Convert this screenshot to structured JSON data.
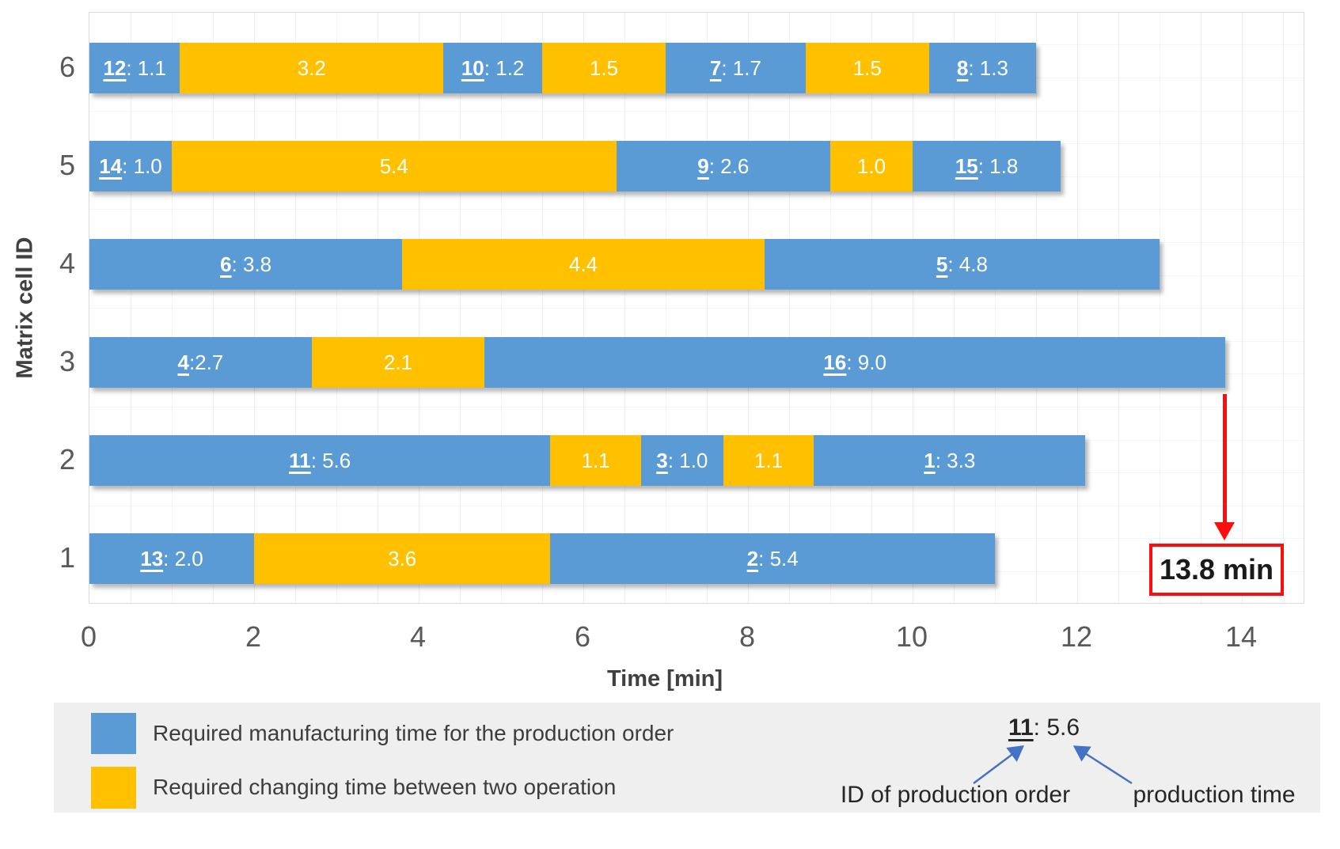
{
  "chart_data": {
    "type": "stacked-bar-horizontal",
    "xlabel": "Time [min]",
    "ylabel": "Matrix cell ID",
    "x_tick_values": [
      0,
      2,
      4,
      6,
      8,
      10,
      12,
      14
    ],
    "xlim": [
      0,
      14.77
    ],
    "y_categories": [
      "6",
      "5",
      "4",
      "3",
      "2",
      "1"
    ],
    "rows": [
      {
        "cell": "6",
        "segments": [
          {
            "kind": "manufacturing",
            "id": "12",
            "sep": ": ",
            "value": 1.1
          },
          {
            "kind": "changing",
            "value": 3.2
          },
          {
            "kind": "manufacturing",
            "id": "10",
            "sep": ": ",
            "value": 1.2
          },
          {
            "kind": "changing",
            "value": 1.5
          },
          {
            "kind": "manufacturing",
            "id": "7",
            "sep": ": ",
            "value": 1.7
          },
          {
            "kind": "changing",
            "value": 1.5
          },
          {
            "kind": "manufacturing",
            "id": "8",
            "sep": ": ",
            "value": 1.3
          }
        ]
      },
      {
        "cell": "5",
        "segments": [
          {
            "kind": "manufacturing",
            "id": "14",
            "sep": ": ",
            "value": 1.0
          },
          {
            "kind": "changing",
            "value": 5.4
          },
          {
            "kind": "manufacturing",
            "id": "9",
            "sep": ": ",
            "value": 2.6
          },
          {
            "kind": "changing",
            "value": 1.0
          },
          {
            "kind": "manufacturing",
            "id": "15",
            "sep": ": ",
            "value": 1.8
          }
        ]
      },
      {
        "cell": "4",
        "segments": [
          {
            "kind": "manufacturing",
            "id": "6",
            "sep": ": ",
            "value": 3.8
          },
          {
            "kind": "changing",
            "value": 4.4
          },
          {
            "kind": "manufacturing",
            "id": "5",
            "sep": ": ",
            "value": 4.8
          }
        ]
      },
      {
        "cell": "3",
        "segments": [
          {
            "kind": "manufacturing",
            "id": "4",
            "sep": ":",
            "value": 2.7
          },
          {
            "kind": "changing",
            "value": 2.1
          },
          {
            "kind": "manufacturing",
            "id": "16",
            "sep": ": ",
            "value": 9.0
          }
        ]
      },
      {
        "cell": "2",
        "segments": [
          {
            "kind": "manufacturing",
            "id": "11",
            "sep": ": ",
            "value": 5.6
          },
          {
            "kind": "changing",
            "value": 1.1
          },
          {
            "kind": "manufacturing",
            "id": "3",
            "sep": ": ",
            "value": 1.0
          },
          {
            "kind": "changing",
            "value": 1.1
          },
          {
            "kind": "manufacturing",
            "id": "1",
            "sep": ": ",
            "value": 3.3
          }
        ]
      },
      {
        "cell": "1",
        "segments": [
          {
            "kind": "manufacturing",
            "id": "13",
            "sep": ": ",
            "value": 2.0
          },
          {
            "kind": "changing",
            "value": 3.6
          },
          {
            "kind": "manufacturing",
            "id": "2",
            "sep": ": ",
            "value": 5.4
          }
        ]
      }
    ],
    "annotation": {
      "label": "13.8 min",
      "time_min": 13.8,
      "points_to_cell": "3"
    },
    "colors": {
      "manufacturing": "#5B9BD5",
      "changing": "#FFC000",
      "annotation_red": "#FB0E0E",
      "axis_text": "#595959",
      "example_arrow_blue": "#4472C4"
    }
  },
  "legend": {
    "items": [
      {
        "swatch": "manufacturing",
        "label": "Required manufacturing time for the production order"
      },
      {
        "swatch": "changing",
        "label": "Required changing time between two operation"
      }
    ],
    "example": {
      "id": "11",
      "sep": ": ",
      "value": "5.6",
      "id_label": "ID of production order",
      "value_label": "production time"
    }
  }
}
